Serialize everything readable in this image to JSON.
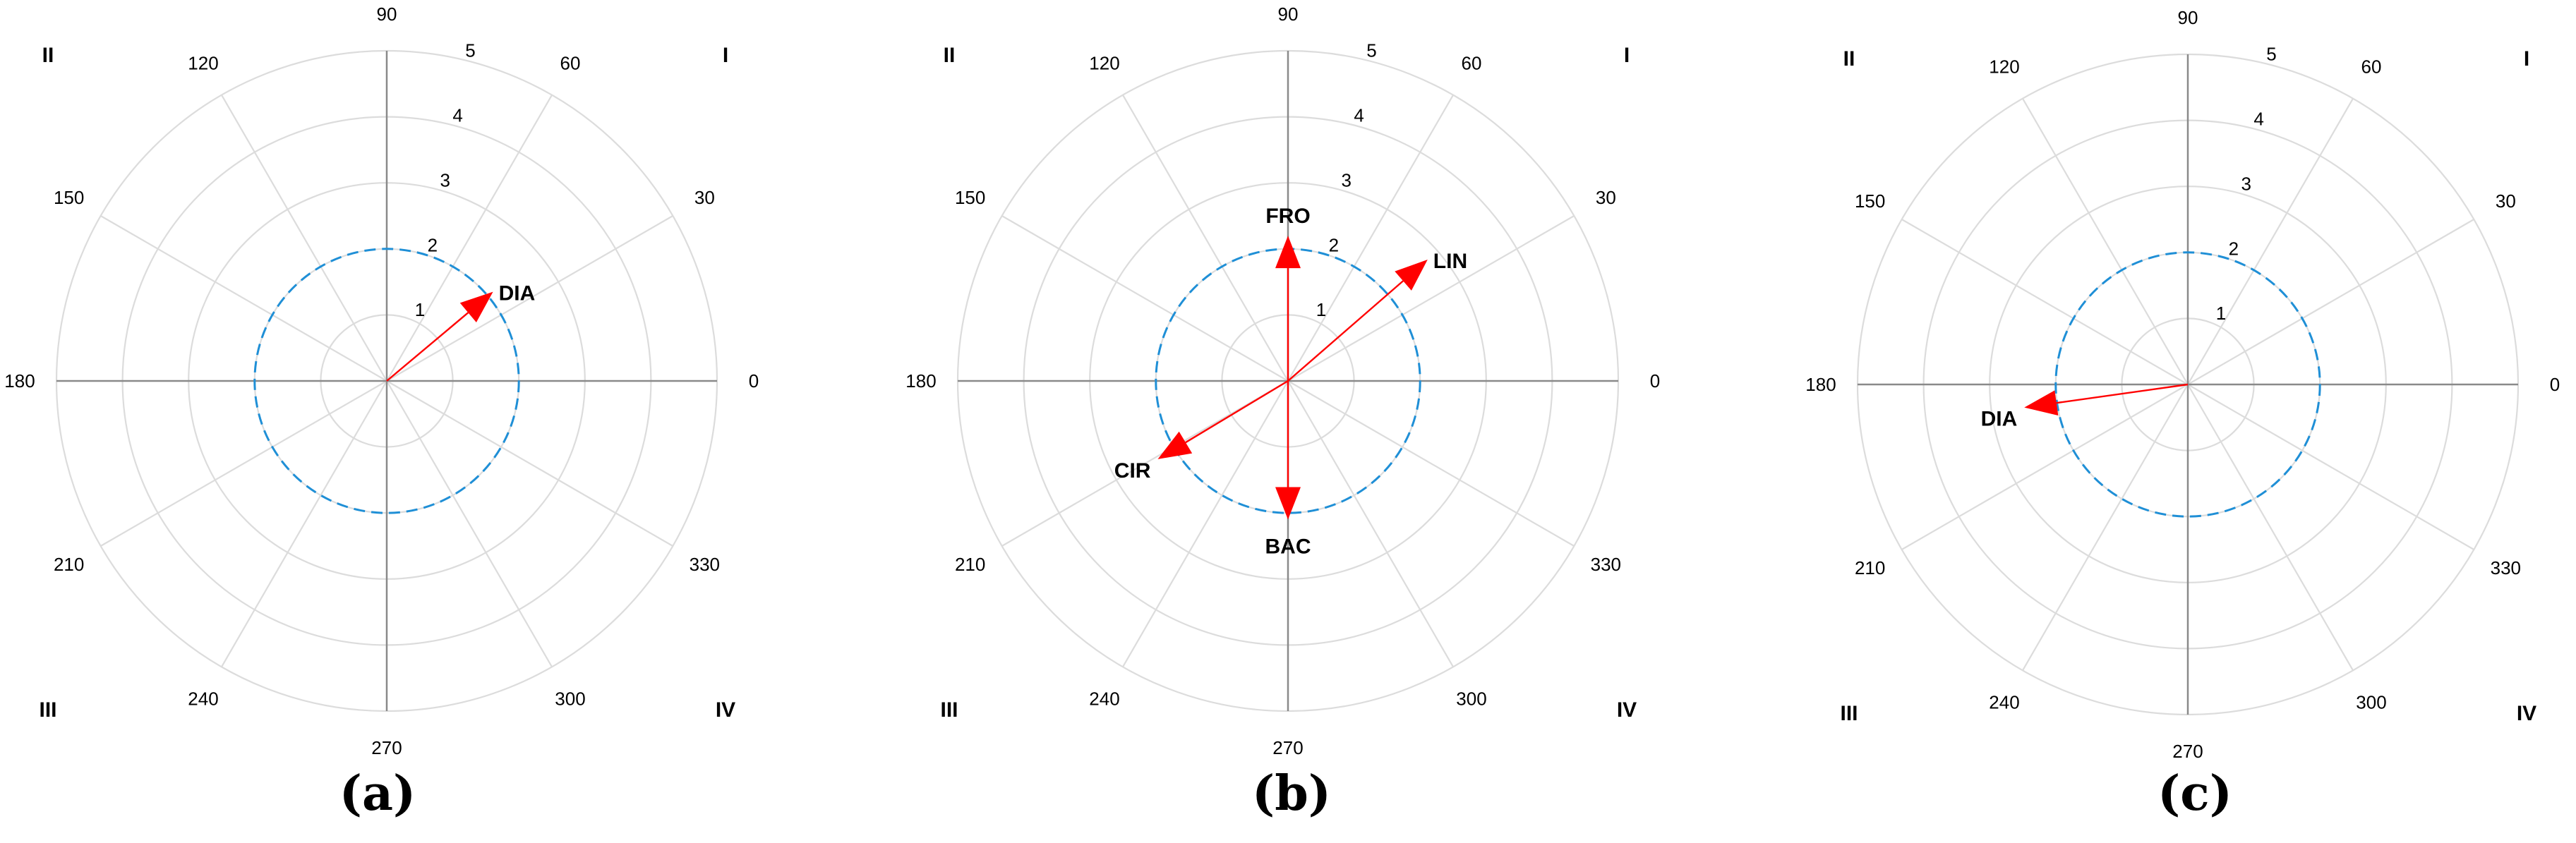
{
  "figure": {
    "captions": [
      "(a)",
      "(b)",
      "(c)"
    ]
  },
  "chart_data": [
    {
      "type": "polar",
      "radial_ticks": [
        "1",
        "2",
        "3",
        "4",
        "5"
      ],
      "rlim": [
        0,
        5
      ],
      "angle_ticks": [
        "0",
        "30",
        "60",
        "90",
        "120",
        "150",
        "180",
        "210",
        "240",
        "270",
        "300",
        "330"
      ],
      "quadrant_labels": [
        "I",
        "II",
        "III",
        "IV"
      ],
      "reference_circle": {
        "radius": 2,
        "style": "dashed",
        "color": "#1f8fd6"
      },
      "grid": true,
      "vectors": [
        {
          "label": "DIA",
          "angle": 40,
          "magnitude": 2.1
        }
      ]
    },
    {
      "type": "polar",
      "radial_ticks": [
        "1",
        "2",
        "3",
        "4",
        "5"
      ],
      "rlim": [
        0,
        5
      ],
      "angle_ticks": [
        "0",
        "30",
        "60",
        "90",
        "120",
        "150",
        "180",
        "210",
        "240",
        "270",
        "300",
        "330"
      ],
      "quadrant_labels": [
        "I",
        "II",
        "III",
        "IV"
      ],
      "reference_circle": {
        "radius": 2,
        "style": "dashed",
        "color": "#1f8fd6"
      },
      "grid": true,
      "vectors": [
        {
          "label": "LIN",
          "angle": 41,
          "magnitude": 2.8
        },
        {
          "label": "FRO",
          "angle": 90,
          "magnitude": 2.2
        },
        {
          "label": "CIR",
          "angle": 211,
          "magnitude": 2.3
        },
        {
          "label": "BAC",
          "angle": 270,
          "magnitude": 2.1
        }
      ]
    },
    {
      "type": "polar",
      "radial_ticks": [
        "1",
        "2",
        "3",
        "4",
        "5"
      ],
      "rlim": [
        0,
        5
      ],
      "angle_ticks": [
        "0",
        "30",
        "60",
        "90",
        "120",
        "150",
        "180",
        "210",
        "240",
        "270",
        "300",
        "330"
      ],
      "quadrant_labels": [
        "I",
        "II",
        "III",
        "IV"
      ],
      "reference_circle": {
        "radius": 2,
        "style": "dashed",
        "color": "#1f8fd6"
      },
      "grid": true,
      "vectors": [
        {
          "label": "DIA",
          "angle": 188,
          "magnitude": 2.5
        }
      ]
    }
  ]
}
